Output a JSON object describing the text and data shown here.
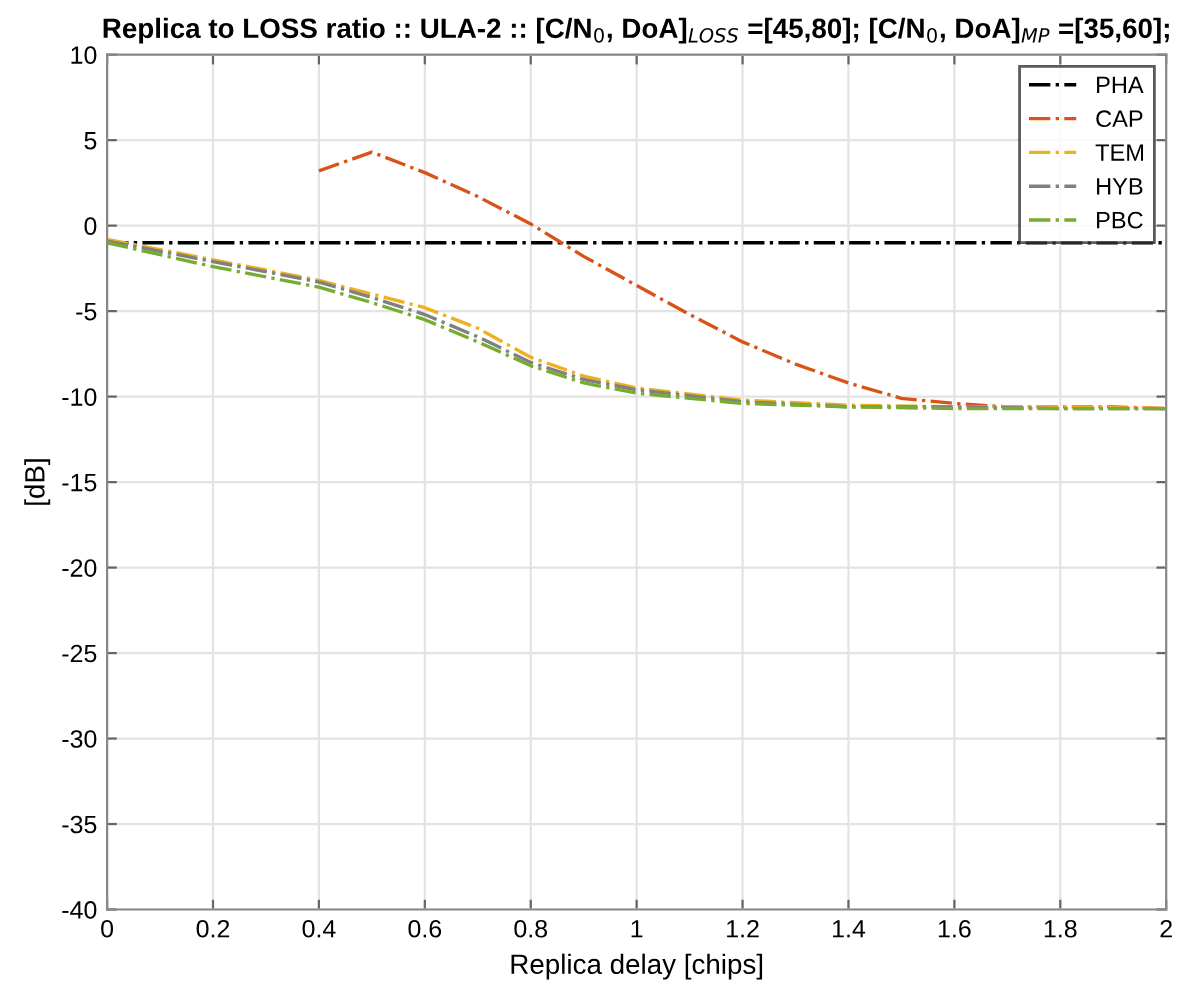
{
  "chart_data": {
    "type": "line",
    "title": "Replica to LOSS ratio :: ULA-2 :: [C/N$_{0}$, DoA]$_{LOSS}$ =[45,80]; [C/N$_{0}$, DoA]$_{MP}$ =[35,60];",
    "xlabel": "Replica delay [chips]",
    "ylabel": "[dB]",
    "xlim": [
      0,
      2
    ],
    "ylim": [
      -40,
      10
    ],
    "xticks": [
      0,
      0.2,
      0.4,
      0.6,
      0.8,
      1,
      1.2,
      1.4,
      1.6,
      1.8,
      2
    ],
    "yticks": [
      -40,
      -35,
      -30,
      -25,
      -20,
      -15,
      -10,
      -5,
      0,
      5,
      10
    ],
    "grid": true,
    "legend": "top right",
    "marker": "none",
    "line_style": "dashdot",
    "series": [
      {
        "name": "PHA",
        "color": "#000000",
        "x": [
          0,
          2
        ],
        "values": [
          -1,
          -1
        ]
      },
      {
        "name": "CAP",
        "color": "#d95319",
        "x": [
          0.4,
          0.5,
          0.6,
          0.7,
          0.8,
          0.9,
          1.0,
          1.1,
          1.2,
          1.3,
          1.4,
          1.5,
          1.6,
          1.7,
          1.8,
          1.9,
          2.0
        ],
        "values": [
          3.2,
          4.3,
          3.1,
          1.7,
          0.1,
          -1.8,
          -3.5,
          -5.2,
          -6.8,
          -8.1,
          -9.2,
          -10.1,
          -10.4,
          -10.6,
          -10.6,
          -10.6,
          -10.7
        ]
      },
      {
        "name": "TEM",
        "color": "#edb120",
        "x": [
          0,
          0.2,
          0.4,
          0.5,
          0.6,
          0.7,
          0.8,
          0.9,
          1.0,
          1.2,
          1.4,
          1.6,
          1.8,
          2.0
        ],
        "values": [
          -0.8,
          -2.0,
          -3.2,
          -4.0,
          -4.8,
          -6.0,
          -7.7,
          -8.8,
          -9.5,
          -10.2,
          -10.5,
          -10.6,
          -10.6,
          -10.7
        ]
      },
      {
        "name": "HYB",
        "color": "#808080",
        "x": [
          0,
          0.2,
          0.4,
          0.5,
          0.6,
          0.7,
          0.8,
          0.9,
          1.0,
          1.2,
          1.4,
          1.6,
          1.8,
          2.0
        ],
        "values": [
          -0.9,
          -2.1,
          -3.3,
          -4.2,
          -5.2,
          -6.5,
          -8.0,
          -9.0,
          -9.6,
          -10.3,
          -10.6,
          -10.6,
          -10.7,
          -10.7
        ]
      },
      {
        "name": "PBC",
        "color": "#77ac30",
        "x": [
          0,
          0.2,
          0.4,
          0.5,
          0.6,
          0.7,
          0.8,
          0.9,
          1.0,
          1.2,
          1.4,
          1.6,
          1.8,
          2.0
        ],
        "values": [
          -1.0,
          -2.4,
          -3.6,
          -4.5,
          -5.5,
          -6.8,
          -8.2,
          -9.2,
          -9.8,
          -10.4,
          -10.6,
          -10.7,
          -10.7,
          -10.7
        ]
      }
    ]
  }
}
